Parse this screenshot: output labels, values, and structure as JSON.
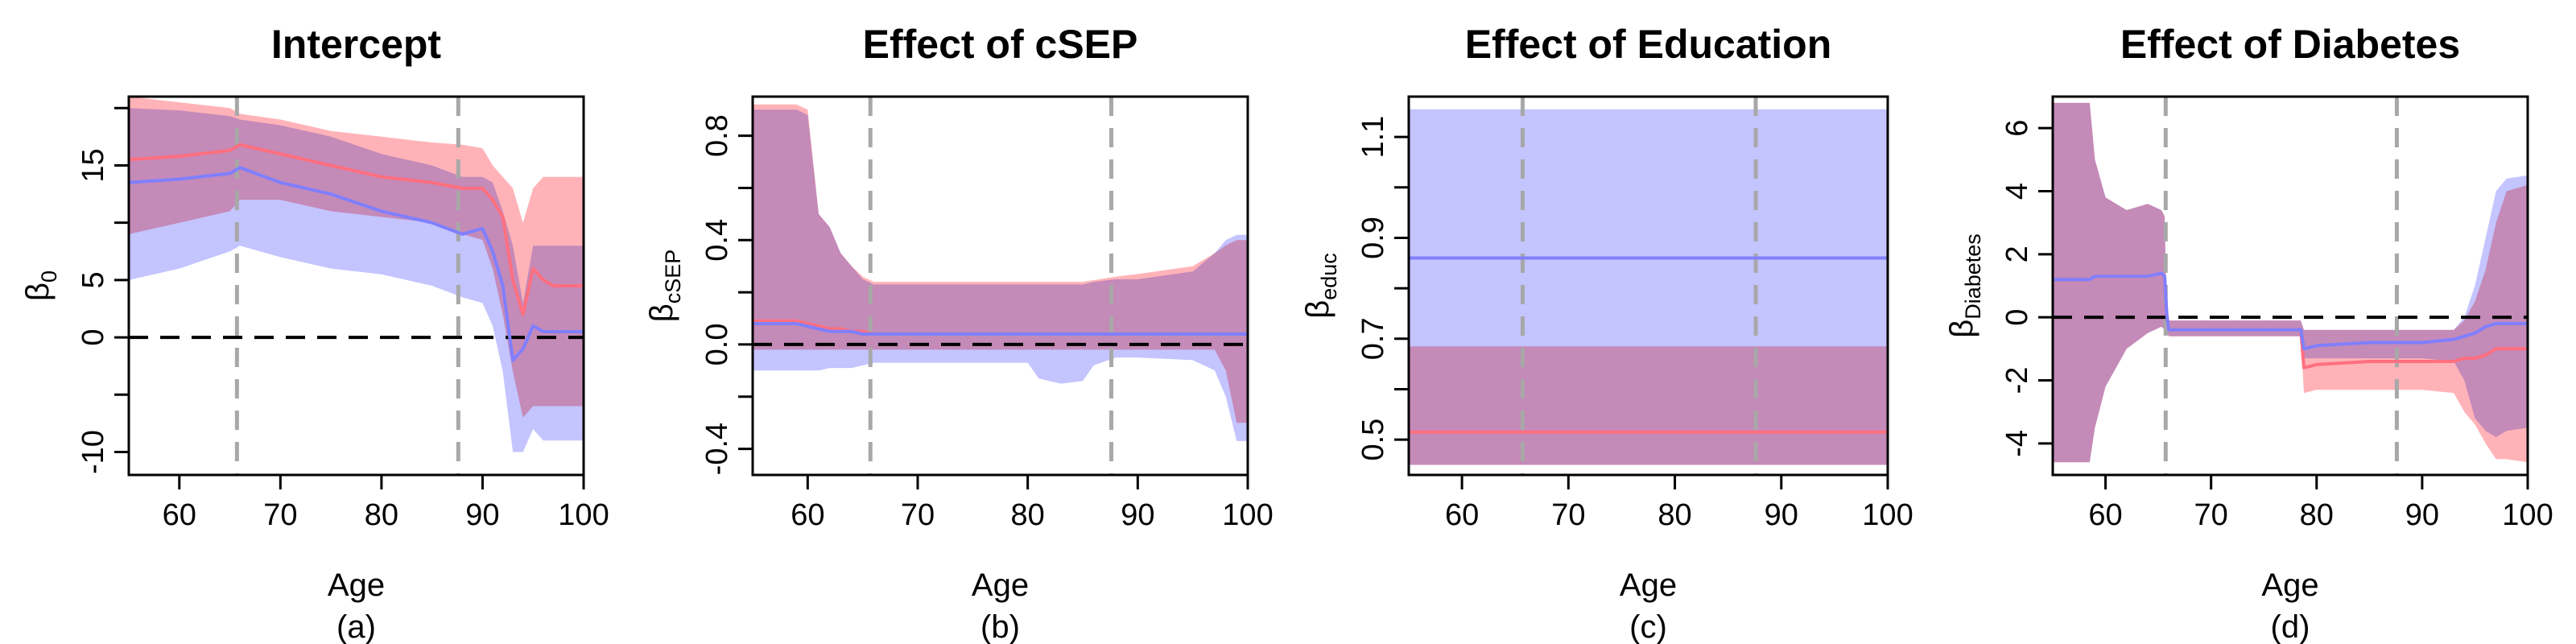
{
  "chart_data": [
    {
      "type": "area",
      "title": "Intercept",
      "xlabel": "Age",
      "ylabel": "β",
      "ylabel_sub": "0",
      "caption": "(a)",
      "xlim": [
        55,
        100
      ],
      "ylim": [
        -12,
        21
      ],
      "xticks": [
        60,
        70,
        80,
        90,
        100
      ],
      "xtick_labels": [
        "60",
        "70",
        "80",
        "90",
        "100"
      ],
      "yticks": [
        -10,
        0,
        5,
        15
      ],
      "ytick_labels": [
        "-10",
        "0",
        "5",
        "15"
      ],
      "ytick_extra_marks": [
        -5,
        10,
        20
      ],
      "vlines": [
        65.7,
        87.6
      ],
      "hline": 0,
      "series": [
        {
          "color": "#ff6f7f",
          "band_color": "#ffb3b8",
          "x": [
            55,
            60,
            65,
            66,
            70,
            75,
            80,
            85,
            88,
            90,
            91,
            92,
            93,
            94,
            95,
            96,
            97,
            98,
            100
          ],
          "mean": [
            15.5,
            15.8,
            16.3,
            16.8,
            16,
            15,
            14,
            13.5,
            13,
            13,
            12,
            10.5,
            5,
            2,
            6,
            5,
            4.5,
            4.5,
            4.5
          ],
          "upper": [
            21,
            20.5,
            20,
            19.5,
            19,
            18,
            17.5,
            17,
            16.8,
            16.5,
            15,
            14,
            13,
            10,
            13,
            14,
            14,
            14,
            14
          ],
          "lower": [
            9,
            10,
            11,
            12,
            12,
            11,
            10.5,
            10,
            9,
            8.5,
            6,
            2,
            -3,
            -7,
            -6,
            -6,
            -6,
            -6,
            -6
          ]
        },
        {
          "color": "#7f7fff",
          "band_color": "#c4c4ff",
          "x": [
            55,
            60,
            65,
            66,
            70,
            75,
            80,
            85,
            88,
            90,
            91,
            92,
            93,
            94,
            95,
            96,
            97,
            98,
            100
          ],
          "mean": [
            13.5,
            13.8,
            14.3,
            14.8,
            13.5,
            12.5,
            11,
            10,
            9,
            9.5,
            7.5,
            4.5,
            -2,
            -1,
            1,
            0.5,
            0.5,
            0.5,
            0.5
          ],
          "upper": [
            20,
            19.8,
            19.3,
            19,
            18.5,
            17.5,
            16,
            15,
            14,
            14,
            13.5,
            11,
            8,
            3,
            8,
            8,
            8,
            8,
            8
          ],
          "lower": [
            5,
            6,
            7.5,
            8,
            7,
            6,
            5.5,
            4.5,
            3.5,
            3,
            1,
            -3,
            -10,
            -10,
            -8,
            -9,
            -9,
            -9,
            -9
          ]
        }
      ]
    },
    {
      "type": "area",
      "title": "Effect of cSEP",
      "xlabel": "Age",
      "ylabel": "β",
      "ylabel_sub": "cSEP",
      "caption": "(b)",
      "xlim": [
        55,
        100
      ],
      "ylim": [
        -0.5,
        0.95
      ],
      "xticks": [
        60,
        70,
        80,
        90,
        100
      ],
      "xtick_labels": [
        "60",
        "70",
        "80",
        "90",
        "100"
      ],
      "yticks": [
        -0.4,
        0.0,
        0.4,
        0.8
      ],
      "ytick_labels": [
        "-0.4",
        "0.0",
        "0.4",
        "0.8"
      ],
      "ytick_extra_marks": [
        -0.2,
        0.2,
        0.6
      ],
      "vlines": [
        65.7,
        87.6
      ],
      "hline": 0,
      "series": [
        {
          "color": "#ff6f7f",
          "band_color": "#ffb3b8",
          "x": [
            55,
            59,
            60,
            61,
            62,
            63,
            64,
            65,
            66,
            70,
            80,
            85,
            88,
            90,
            95,
            97,
            98,
            99,
            100
          ],
          "mean": [
            0.09,
            0.09,
            0.08,
            0.07,
            0.06,
            0.06,
            0.05,
            0.05,
            0.04,
            0.04,
            0.04,
            0.04,
            0.04,
            0.04,
            0.04,
            0.04,
            0.04,
            0.04,
            0.04
          ],
          "upper": [
            0.92,
            0.92,
            0.9,
            0.5,
            0.45,
            0.35,
            0.3,
            0.26,
            0.24,
            0.24,
            0.24,
            0.24,
            0.26,
            0.27,
            0.3,
            0.35,
            0.38,
            0.4,
            0.4
          ],
          "lower": [
            -0.02,
            -0.02,
            -0.02,
            -0.02,
            -0.02,
            -0.02,
            -0.02,
            -0.02,
            -0.02,
            -0.02,
            -0.02,
            -0.02,
            -0.02,
            -0.02,
            -0.02,
            -0.02,
            -0.1,
            -0.3,
            -0.3
          ]
        },
        {
          "color": "#7f7fff",
          "band_color": "#c4c4ff",
          "x": [
            55,
            59,
            60,
            61,
            62,
            63,
            64,
            65,
            66,
            70,
            80,
            81,
            83,
            85,
            86,
            88,
            90,
            95,
            97,
            98,
            99,
            100
          ],
          "mean": [
            0.08,
            0.08,
            0.07,
            0.06,
            0.05,
            0.05,
            0.05,
            0.04,
            0.04,
            0.04,
            0.04,
            0.04,
            0.04,
            0.04,
            0.04,
            0.04,
            0.04,
            0.04,
            0.04,
            0.04,
            0.04,
            0.04
          ],
          "upper": [
            0.9,
            0.9,
            0.88,
            0.5,
            0.45,
            0.35,
            0.3,
            0.25,
            0.23,
            0.23,
            0.23,
            0.23,
            0.23,
            0.23,
            0.24,
            0.25,
            0.25,
            0.28,
            0.35,
            0.4,
            0.42,
            0.42
          ],
          "lower": [
            -0.1,
            -0.1,
            -0.1,
            -0.1,
            -0.09,
            -0.09,
            -0.09,
            -0.08,
            -0.07,
            -0.07,
            -0.07,
            -0.13,
            -0.15,
            -0.14,
            -0.08,
            -0.05,
            -0.05,
            -0.06,
            -0.1,
            -0.2,
            -0.37,
            -0.37
          ]
        }
      ]
    },
    {
      "type": "area",
      "title": "Effect of Education",
      "xlabel": "Age",
      "ylabel": "β",
      "ylabel_sub": "educ",
      "caption": "(c)",
      "xlim": [
        55,
        100
      ],
      "ylim": [
        0.43,
        1.18
      ],
      "xticks": [
        60,
        70,
        80,
        90,
        100
      ],
      "xtick_labels": [
        "60",
        "70",
        "80",
        "90",
        "100"
      ],
      "yticks": [
        0.5,
        0.7,
        0.9,
        1.1
      ],
      "ytick_labels": [
        "0.5",
        "0.7",
        "0.9",
        "1.1"
      ],
      "ytick_extra_marks": [
        0.6,
        0.8,
        1.0
      ],
      "vlines": [
        65.7,
        87.6
      ],
      "hline": null,
      "series": [
        {
          "color": "#7f7fff",
          "band_color": "#c4c4ff",
          "x": [
            55,
            100
          ],
          "mean": [
            0.86,
            0.86
          ],
          "upper": [
            1.155,
            1.155
          ],
          "lower": [
            0.45,
            0.45
          ]
        },
        {
          "color": "#ff6f7f",
          "band_color": "#ffb3b8",
          "x": [
            55,
            100
          ],
          "mean": [
            0.515,
            0.515
          ],
          "upper": [
            0.685,
            0.685
          ],
          "lower": [
            0.45,
            0.45
          ]
        }
      ]
    },
    {
      "type": "area",
      "title": "Effect of Diabetes",
      "xlabel": "Age",
      "ylabel": "β",
      "ylabel_sub": "Diabetes",
      "caption": "(d)",
      "xlim": [
        55,
        100
      ],
      "ylim": [
        -5,
        7
      ],
      "xticks": [
        60,
        70,
        80,
        90,
        100
      ],
      "xtick_labels": [
        "60",
        "70",
        "80",
        "90",
        "100"
      ],
      "yticks": [
        -4,
        -2,
        0,
        2,
        4,
        6
      ],
      "ytick_labels": [
        "-4",
        "-2",
        "0",
        "2",
        "4",
        "6"
      ],
      "ytick_extra_marks": [],
      "vlines": [
        65.7,
        87.6
      ],
      "hline": 0,
      "series": [
        {
          "color": "#ff6f7f",
          "band_color": "#ffb3b8",
          "x": [
            55,
            58.5,
            59,
            60,
            62,
            64,
            65.3,
            65.6,
            65.8,
            66,
            70,
            74,
            78.5,
            78.8,
            80,
            85,
            88,
            90,
            93,
            94,
            95,
            96,
            97,
            98,
            100
          ],
          "mean": [
            1.2,
            1.2,
            1.3,
            1.3,
            1.3,
            1.3,
            1.4,
            1.3,
            0.1,
            -0.4,
            -0.4,
            -0.4,
            -0.4,
            -1.6,
            -1.5,
            -1.4,
            -1.4,
            -1.4,
            -1.4,
            -1.3,
            -1.3,
            -1.2,
            -1.0,
            -1.0,
            -1.0
          ],
          "upper": [
            6.8,
            6.8,
            5,
            3.8,
            3.4,
            3.6,
            3.4,
            3.2,
            -0.1,
            -0.1,
            -0.1,
            -0.1,
            -0.1,
            -0.4,
            -0.4,
            -0.4,
            -0.4,
            -0.4,
            -0.4,
            -0.1,
            0.5,
            1.5,
            3,
            4,
            4.2
          ],
          "lower": [
            -4.6,
            -4.6,
            -3.5,
            -2.2,
            -1.0,
            -0.5,
            -0.3,
            -0.4,
            -0.5,
            -0.6,
            -0.6,
            -0.6,
            -0.6,
            -2.4,
            -2.3,
            -2.3,
            -2.3,
            -2.3,
            -2.4,
            -3.0,
            -3.4,
            -4.0,
            -4.5,
            -4.5,
            -4.6
          ]
        },
        {
          "color": "#7f7fff",
          "band_color": "#c4c4ff",
          "x": [
            55,
            58.5,
            59,
            60,
            62,
            64,
            65.3,
            65.6,
            65.8,
            66,
            70,
            74,
            78.5,
            78.8,
            80,
            85,
            88,
            90,
            93,
            94,
            95,
            96,
            97,
            98,
            100
          ],
          "mean": [
            1.2,
            1.2,
            1.3,
            1.3,
            1.3,
            1.3,
            1.4,
            1.3,
            0.1,
            -0.4,
            -0.4,
            -0.4,
            -0.4,
            -1.0,
            -0.9,
            -0.8,
            -0.8,
            -0.8,
            -0.7,
            -0.6,
            -0.5,
            -0.3,
            -0.2,
            -0.2,
            -0.2
          ],
          "upper": [
            6.8,
            6.8,
            5,
            3.8,
            3.4,
            3.6,
            3.4,
            3.2,
            -0.1,
            -0.1,
            -0.1,
            -0.1,
            -0.1,
            -0.4,
            -0.4,
            -0.4,
            -0.4,
            -0.4,
            -0.4,
            0.0,
            1.0,
            2.5,
            4.0,
            4.4,
            4.5
          ],
          "lower": [
            -4.6,
            -4.6,
            -3.5,
            -2.2,
            -1.0,
            -0.5,
            -0.3,
            -0.4,
            -0.5,
            -0.6,
            -0.6,
            -0.6,
            -0.6,
            -1.3,
            -1.3,
            -1.3,
            -1.3,
            -1.3,
            -1.4,
            -2.0,
            -3.2,
            -3.6,
            -3.8,
            -3.6,
            -3.5
          ]
        }
      ]
    }
  ]
}
